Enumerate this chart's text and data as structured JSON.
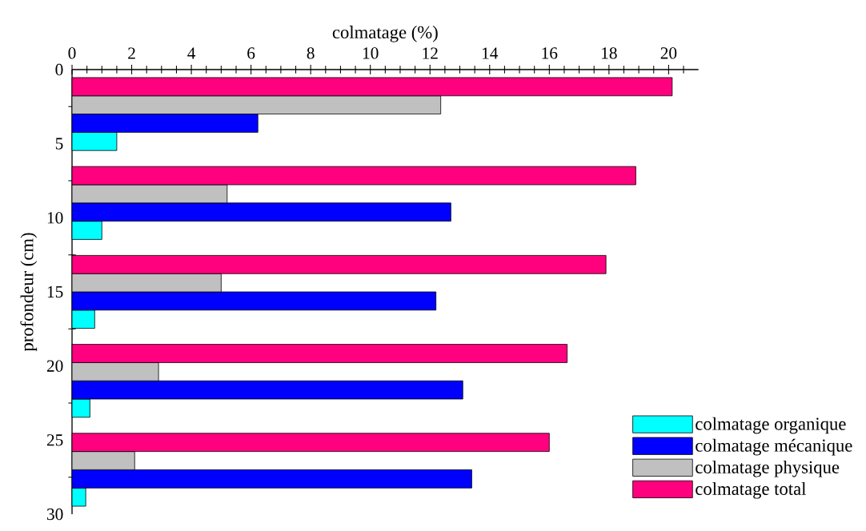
{
  "chart_data": {
    "type": "bar",
    "orientation": "horizontal",
    "xlabel": "colmatage (%)",
    "ylabel": "profondeur (cm)",
    "x": [
      3,
      9,
      15,
      21,
      27
    ],
    "series": [
      {
        "name": "colmatage organique",
        "color": "#00ffff",
        "values": [
          1.5,
          1.0,
          0.76,
          0.6,
          0.46
        ]
      },
      {
        "name": "colmatage mécanique",
        "color": "#0000ff",
        "values": [
          6.23,
          12.7,
          12.2,
          13.1,
          13.4
        ]
      },
      {
        "name": "colmatage physique",
        "color": "#c0c0c0",
        "values": [
          12.36,
          5.2,
          5.0,
          2.9,
          2.1
        ]
      },
      {
        "name": "colmatage total",
        "color": "#ff007f",
        "values": [
          20.12,
          18.9,
          17.9,
          16.6,
          16.0
        ]
      }
    ],
    "xlim": [
      0,
      21
    ],
    "ylim": [
      30,
      0
    ],
    "xticks": [
      0,
      {
        "value": 0.5,
        "label": null
      },
      {
        "value": 1,
        "label": null
      },
      {
        "value": 1.5,
        "label": null
      },
      2,
      {
        "value": 2.5,
        "label": null
      },
      {
        "value": 3,
        "label": null
      },
      {
        "value": 3.5,
        "label": null
      },
      4,
      {
        "value": 4.5,
        "label": null
      },
      {
        "value": 5,
        "label": null
      },
      {
        "value": 5.5,
        "label": null
      },
      6,
      {
        "value": 6.5,
        "label": null
      },
      {
        "value": 7,
        "label": null
      },
      {
        "value": 7.5,
        "label": null
      },
      8,
      {
        "value": 8.5,
        "label": null
      },
      {
        "value": 9,
        "label": null
      },
      {
        "value": 9.5,
        "label": null
      },
      10,
      {
        "value": 10.5,
        "label": null
      },
      {
        "value": 11,
        "label": null
      },
      {
        "value": 11.5,
        "label": null
      },
      12,
      {
        "value": 12.5,
        "label": null
      },
      {
        "value": 13,
        "label": null
      },
      {
        "value": 13.5,
        "label": null
      },
      14,
      {
        "value": 14.5,
        "label": null
      },
      {
        "value": 15,
        "label": null
      },
      {
        "value": 15.5,
        "label": null
      },
      16,
      {
        "value": 16.5,
        "label": null
      },
      {
        "value": 17,
        "label": null
      },
      {
        "value": 17.5,
        "label": null
      },
      18,
      {
        "value": 18.5,
        "label": null
      },
      {
        "value": 19,
        "label": null
      },
      {
        "value": 19.5,
        "label": null
      },
      20,
      {
        "value": 20.5,
        "label": null
      }
    ],
    "yticks": [
      0,
      {
        "value": 2.5,
        "label": null
      },
      5,
      {
        "value": 7.5,
        "label": null
      },
      10,
      {
        "value": 12.5,
        "label": null
      },
      15,
      {
        "value": 17.5,
        "label": null
      },
      20,
      {
        "value": 22.5,
        "label": null
      },
      25,
      {
        "value": 27.5,
        "label": null
      },
      30
    ],
    "legend": "bottom right"
  }
}
